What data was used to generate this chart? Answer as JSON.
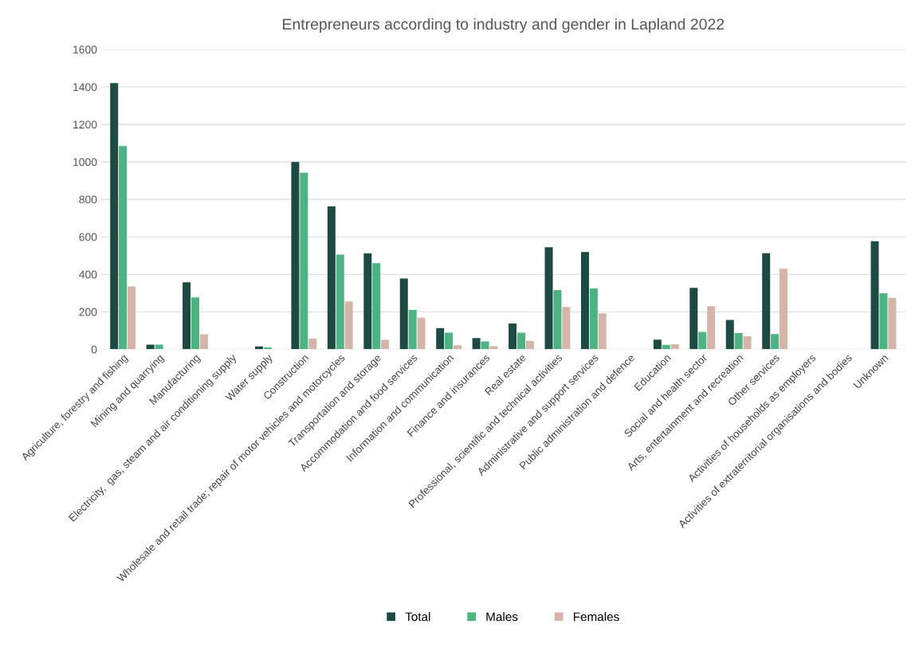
{
  "chart_data": {
    "type": "bar",
    "title": "Entrepreneurs according to industry and gender in Lapland 2022",
    "categories": [
      "Agriculture, forestry and fishing",
      "Mining and quarrying",
      "Manufacturing",
      "Electricity,  gas, steam and air conditioning supply",
      "Water supply",
      "Construction",
      "Wholesale and retail trade; repair of motor vehicles and motorcycles",
      "Transportation and storage",
      "Accommodation and food services",
      "Information and communication",
      "Finance and insurances",
      "Real estate",
      "Professional, scientific and technical activities",
      "Administrative and support services",
      "Public administration and defence",
      "Education",
      "Social and health sector",
      "Arts, entertainment and recreation",
      "Other services",
      "Activities of households as employers",
      "Activities of extraterritorial organisations and bodies",
      "Unknown"
    ],
    "series": [
      {
        "name": "Total",
        "color": "#1e4a44",
        "values": [
          1420,
          25,
          357,
          null,
          15,
          1000,
          762,
          512,
          378,
          113,
          60,
          137,
          545,
          519,
          0,
          51,
          328,
          156,
          513,
          0,
          0,
          576
        ]
      },
      {
        "name": "Males",
        "color": "#4db383",
        "values": [
          1085,
          25,
          277,
          null,
          10,
          942,
          505,
          460,
          210,
          88,
          42,
          89,
          316,
          325,
          0,
          24,
          93,
          86,
          81,
          0,
          0,
          299
        ]
      },
      {
        "name": "Females",
        "color": "#d5b5aa",
        "values": [
          335,
          0,
          80,
          null,
          null,
          57,
          255,
          50,
          168,
          22,
          16,
          45,
          226,
          192,
          0,
          27,
          230,
          69,
          430,
          0,
          0,
          275
        ]
      }
    ],
    "ylim": [
      0,
      1600
    ],
    "yticks": [
      0,
      200,
      400,
      600,
      800,
      1000,
      1200,
      1400,
      1600
    ],
    "grid": "y",
    "legend": "bottom"
  }
}
